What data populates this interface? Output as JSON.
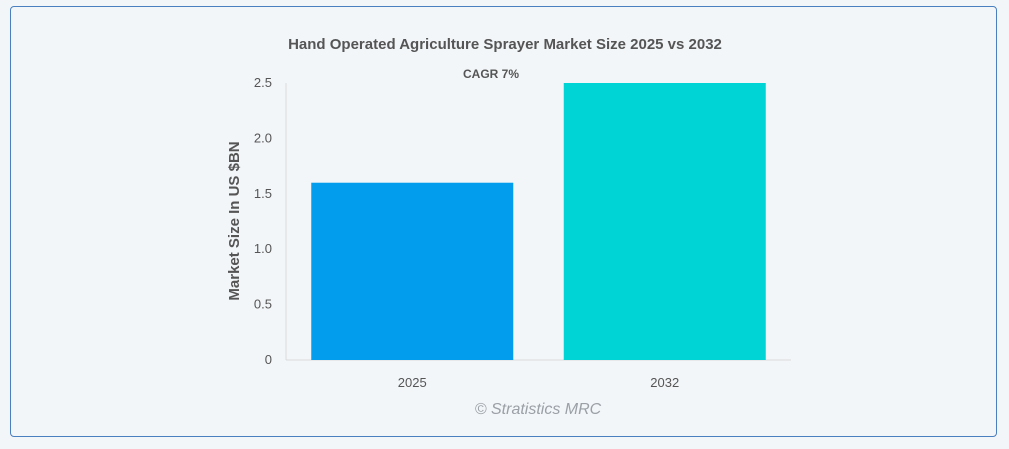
{
  "chart_data": {
    "type": "bar",
    "title": "Hand Operated Agriculture Sprayer Market Size 2025 vs 2032",
    "annotation": "CAGR 7%",
    "ylabel": "Market Size In US $BN",
    "xlabel": "",
    "categories": [
      "2025",
      "2032"
    ],
    "values": [
      1.6,
      2.5
    ],
    "colors": [
      "#039ded",
      "#00d4d4"
    ],
    "ylim": [
      0,
      2.5
    ],
    "yticks": [
      0,
      0.5,
      1.0,
      1.5,
      2.0,
      2.5
    ],
    "ytick_labels": [
      "0",
      "0.5",
      "1.0",
      "1.5",
      "2.0",
      "2.5"
    ],
    "grid": false,
    "legend": "none"
  },
  "credit": "© Stratistics MRC"
}
